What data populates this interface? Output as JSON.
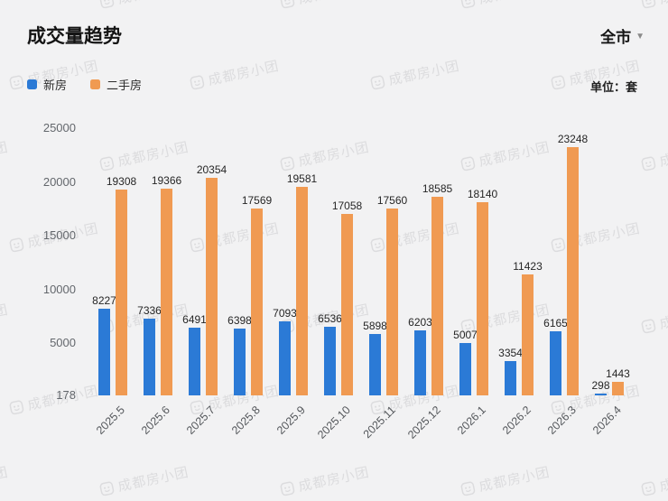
{
  "header": {
    "title": "成交量趋势",
    "scope": "全市"
  },
  "icons": {
    "chevron_down": "▼"
  },
  "unit_label": "单位：套",
  "watermark_text": "成都房小团",
  "chart_data": {
    "type": "bar",
    "title": "成交量趋势",
    "unit": "套",
    "categories": [
      "2025.5",
      "2025.6",
      "2025.7",
      "2025.8",
      "2025.9",
      "2025.10",
      "2025.11",
      "2025.12",
      "2026.1",
      "2026.2",
      "2026.3",
      "2026.4"
    ],
    "series": [
      {
        "key": "xinfang",
        "name": "新房",
        "color": "#2b7ad6",
        "values": [
          8227,
          7336,
          6491,
          6398,
          7093,
          6536,
          5898,
          6203,
          5007,
          3354,
          6165,
          298
        ]
      },
      {
        "key": "ershoufang",
        "name": "二手房",
        "color": "#f09a52",
        "values": [
          19308,
          19366,
          20354,
          17569,
          19581,
          17058,
          17560,
          18585,
          18140,
          11423,
          23248,
          1443
        ]
      }
    ],
    "ylim": [
      178,
      25000
    ],
    "yticks": [
      25000,
      20000,
      15000,
      10000,
      5000,
      178
    ],
    "grid": false,
    "legend_position": "top-left",
    "value_labels": true,
    "x_label_rotation": -45
  }
}
